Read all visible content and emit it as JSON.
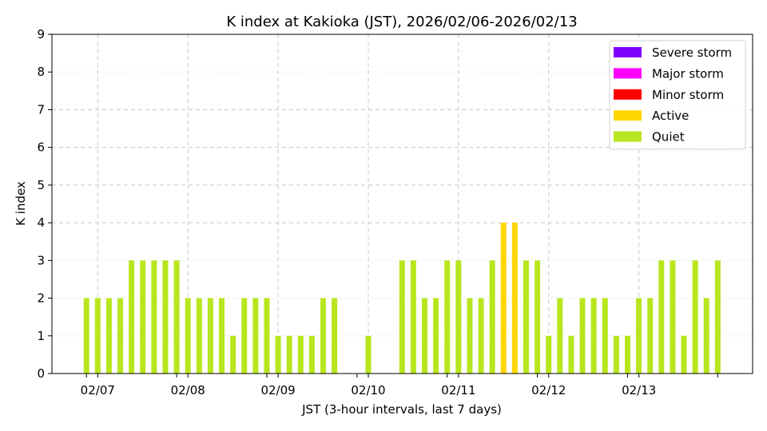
{
  "chart_data": {
    "type": "bar",
    "title": "K index at Kakioka (JST), 2026/02/06-2026/02/13",
    "xlabel": "JST (3-hour intervals, last 7 days)",
    "ylabel": "K index",
    "ylim": [
      0,
      9
    ],
    "yticks": [
      "0",
      "1",
      "2",
      "3",
      "4",
      "5",
      "6",
      "7",
      "8",
      "9"
    ],
    "xticks": [
      "02/07",
      "02/08",
      "02/09",
      "02/10",
      "02/11",
      "02/12",
      "02/13"
    ],
    "legend_position": "top-right",
    "legend": [
      {
        "label": "Severe storm",
        "color": "#8000ff"
      },
      {
        "label": "Major storm",
        "color": "#ff00ff"
      },
      {
        "label": "Minor storm",
        "color": "#ff0000"
      },
      {
        "label": "Active",
        "color": "#ffd700"
      },
      {
        "label": "Quiet",
        "color": "#b8e61e"
      }
    ],
    "values": [
      2,
      2,
      2,
      2,
      3,
      3,
      3,
      3,
      3,
      2,
      2,
      2,
      2,
      1,
      2,
      2,
      2,
      1,
      1,
      1,
      1,
      2,
      2,
      null,
      null,
      1,
      null,
      null,
      3,
      3,
      2,
      2,
      3,
      3,
      2,
      2,
      3,
      4,
      4,
      3,
      3,
      1,
      2,
      1,
      2,
      2,
      2,
      1,
      1,
      2,
      2,
      3,
      3,
      1,
      3,
      2,
      3
    ]
  }
}
